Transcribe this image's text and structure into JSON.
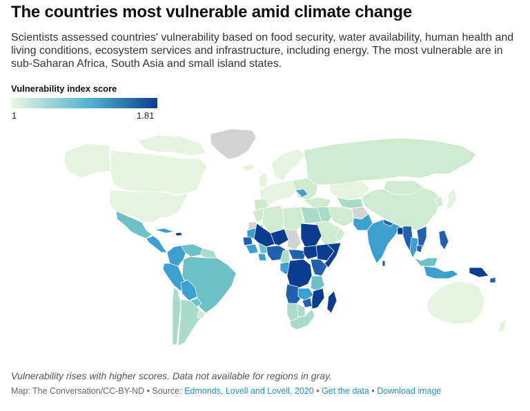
{
  "header": {
    "title": "The countries most vulnerable amid climate change",
    "subtitle": "Scientists assessed countries' vulnerability based on food security, water availability, human health and living conditions, ecosystem services and infrastructure, including energy. The most vulnerable are in sub-Saharan Africa, South Asia and small island states."
  },
  "legend": {
    "title": "Vulnerability index score",
    "min": "1",
    "max": "1.81",
    "color_low": "#eaf6e2",
    "color_mid": "#4fb0cf",
    "color_high": "#0b3d8f"
  },
  "colors": {
    "no_data": "#d3d3d3",
    "very_low": "#e6f4df",
    "low": "#cfeacf",
    "low_mid": "#a9dbc8",
    "mid": "#6cc0c6",
    "mid_high": "#3d9ed0",
    "high": "#2060ad",
    "very_high": "#0b3d8f"
  },
  "footer": {
    "note": "Vulnerability rises with higher scores. Data not available for regions in gray.",
    "credit": "Map: The Conversation/CC-BY-ND",
    "source_label": "Source:",
    "source_link": "Edmonds, Lovell and Lovell, 2020",
    "get_data": "Get the data",
    "download": "Download image",
    "separator": "•"
  }
}
